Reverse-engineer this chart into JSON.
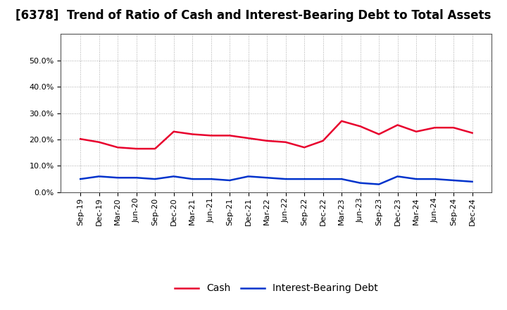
{
  "title": "[6378]  Trend of Ratio of Cash and Interest-Bearing Debt to Total Assets",
  "x_labels": [
    "Sep-19",
    "Dec-19",
    "Mar-20",
    "Jun-20",
    "Sep-20",
    "Dec-20",
    "Mar-21",
    "Jun-21",
    "Sep-21",
    "Dec-21",
    "Mar-22",
    "Jun-22",
    "Sep-22",
    "Dec-22",
    "Mar-23",
    "Jun-23",
    "Sep-23",
    "Dec-23",
    "Mar-24",
    "Jun-24",
    "Sep-24",
    "Dec-24"
  ],
  "cash": [
    20.2,
    19.0,
    17.0,
    16.5,
    16.5,
    23.0,
    22.0,
    21.5,
    21.5,
    20.5,
    19.5,
    19.0,
    17.0,
    19.5,
    27.0,
    25.0,
    22.0,
    25.5,
    23.0,
    24.5,
    24.5,
    22.5
  ],
  "interest_bearing_debt": [
    5.0,
    6.0,
    5.5,
    5.5,
    5.0,
    6.0,
    5.0,
    5.0,
    4.5,
    6.0,
    5.5,
    5.0,
    5.0,
    5.0,
    5.0,
    3.5,
    3.0,
    6.0,
    5.0,
    5.0,
    4.5,
    4.0
  ],
  "cash_color": "#e8002d",
  "debt_color": "#0033cc",
  "ylim": [
    0,
    60
  ],
  "yticks": [
    0.0,
    10.0,
    20.0,
    30.0,
    40.0,
    50.0
  ],
  "background_color": "#ffffff",
  "plot_bg_color": "#ffffff",
  "grid_color": "#aaaaaa",
  "legend_cash": "Cash",
  "legend_debt": "Interest-Bearing Debt",
  "title_fontsize": 12,
  "tick_fontsize": 8,
  "legend_fontsize": 10,
  "line_width": 1.8
}
